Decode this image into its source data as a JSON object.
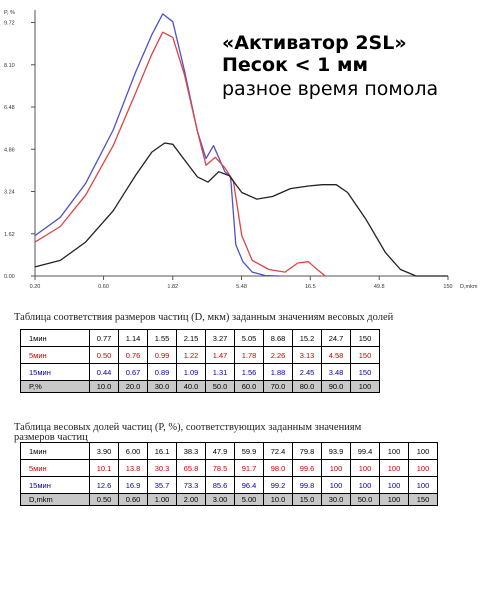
{
  "header": {
    "title": "«Активатор 2SL»",
    "line2": "Песок < 1 мм",
    "line3": "разное время помола"
  },
  "chart_data": {
    "type": "line",
    "ylabel": "P, %",
    "xlabel": "D,mkm",
    "y_ticks": [
      "0.00",
      "1.62",
      "3.24",
      "4.86",
      "6.48",
      "8.10",
      "9.72"
    ],
    "x_ticks": [
      "0.20",
      "0.60",
      "1.82",
      "5.48",
      "16.5",
      "49.8",
      "150"
    ],
    "x_scale": "log",
    "xlim": [
      0.2,
      150
    ],
    "ylim": [
      0,
      10.2
    ],
    "series": [
      {
        "name": "1мин",
        "color": "#5050cc",
        "points": [
          [
            0.2,
            1.55
          ],
          [
            0.3,
            2.25
          ],
          [
            0.45,
            3.55
          ],
          [
            0.7,
            5.6
          ],
          [
            1.0,
            7.8
          ],
          [
            1.3,
            9.25
          ],
          [
            1.55,
            10.05
          ],
          [
            1.82,
            9.75
          ],
          [
            2.2,
            7.85
          ],
          [
            2.7,
            5.55
          ],
          [
            3.1,
            4.5
          ],
          [
            3.5,
            5.0
          ],
          [
            4.2,
            4.0
          ],
          [
            4.6,
            3.8
          ],
          [
            5.0,
            1.2
          ],
          [
            5.6,
            0.55
          ],
          [
            6.5,
            0.15
          ],
          [
            8.0,
            0.02
          ],
          [
            10.0,
            0.0
          ]
        ]
      },
      {
        "name": "5мин",
        "color": "#dd4444",
        "points": [
          [
            0.2,
            1.3
          ],
          [
            0.3,
            1.9
          ],
          [
            0.45,
            3.1
          ],
          [
            0.7,
            5.0
          ],
          [
            1.0,
            7.0
          ],
          [
            1.3,
            8.5
          ],
          [
            1.55,
            9.35
          ],
          [
            1.82,
            9.15
          ],
          [
            2.2,
            7.7
          ],
          [
            2.7,
            5.55
          ],
          [
            3.1,
            4.25
          ],
          [
            3.6,
            4.55
          ],
          [
            4.2,
            4.15
          ],
          [
            4.8,
            3.65
          ],
          [
            5.5,
            1.55
          ],
          [
            6.5,
            0.6
          ],
          [
            8.5,
            0.25
          ],
          [
            11.0,
            0.15
          ],
          [
            13.5,
            0.5
          ],
          [
            16.0,
            0.55
          ],
          [
            18.0,
            0.3
          ],
          [
            21.0,
            0.0
          ]
        ]
      },
      {
        "name": "15мин",
        "color": "#222222",
        "points": [
          [
            0.2,
            0.35
          ],
          [
            0.3,
            0.6
          ],
          [
            0.45,
            1.3
          ],
          [
            0.7,
            2.5
          ],
          [
            1.0,
            3.85
          ],
          [
            1.3,
            4.75
          ],
          [
            1.6,
            5.1
          ],
          [
            1.82,
            5.05
          ],
          [
            2.2,
            4.45
          ],
          [
            2.7,
            3.8
          ],
          [
            3.2,
            3.6
          ],
          [
            3.8,
            4.0
          ],
          [
            4.5,
            3.85
          ],
          [
            5.5,
            3.2
          ],
          [
            7.0,
            2.95
          ],
          [
            9.0,
            3.05
          ],
          [
            12.0,
            3.35
          ],
          [
            16.0,
            3.45
          ],
          [
            20.0,
            3.5
          ],
          [
            25.0,
            3.5
          ],
          [
            30.0,
            3.2
          ],
          [
            40.0,
            2.2
          ],
          [
            55.0,
            0.9
          ],
          [
            70.0,
            0.25
          ],
          [
            90.0,
            0.0
          ],
          [
            150,
            0.0
          ]
        ]
      }
    ]
  },
  "table1": {
    "caption": "Таблица соответствия размеров частиц (D, мкм) заданным значениям весовых долей",
    "rows": [
      {
        "label": "1мин",
        "cls": "blk",
        "values": [
          "0.77",
          "1.14",
          "1.55",
          "2.15",
          "3.27",
          "5.05",
          "8.68",
          "15.2",
          "24.7",
          "150"
        ]
      },
      {
        "label": "5мин",
        "cls": "red",
        "values": [
          "0.50",
          "0.76",
          "0.99",
          "1.22",
          "1.47",
          "1.78",
          "2.26",
          "3.13",
          "4.58",
          "150"
        ]
      },
      {
        "label": "15мин",
        "cls": "blue",
        "values": [
          "0.44",
          "0.67",
          "0.89",
          "1.09",
          "1.31",
          "1.56",
          "1.88",
          "2.45",
          "3.48",
          "150"
        ]
      },
      {
        "label": "P,%",
        "cls": "blk",
        "values": [
          "10.0",
          "20.0",
          "30.0",
          "40.0",
          "50.0",
          "60.0",
          "70.0",
          "80.0",
          "90.0",
          "100"
        ]
      }
    ]
  },
  "table2": {
    "caption_line1": "Таблица весовых долей частиц (P, %), соответствующих заданным значениям",
    "caption_line2": "размеров частиц",
    "rows": [
      {
        "label": "1мин",
        "cls": "blk",
        "values": [
          "3.90",
          "6.00",
          "16.1",
          "38.3",
          "47.9",
          "59.9",
          "72.4",
          "79.8",
          "93.9",
          "99.4",
          "100",
          "100"
        ]
      },
      {
        "label": "5мин",
        "cls": "red",
        "values": [
          "10.1",
          "13.8",
          "30.3",
          "65.8",
          "78.5",
          "91.7",
          "98.0",
          "99.6",
          "100",
          "100",
          "100",
          "100"
        ]
      },
      {
        "label": "15мин",
        "cls": "blue",
        "values": [
          "12.6",
          "16.9",
          "35.7",
          "73.3",
          "85.6",
          "96.4",
          "99.2",
          "99.8",
          "100",
          "100",
          "100",
          "100"
        ]
      },
      {
        "label": "D,mkm",
        "cls": "blk",
        "values": [
          "0.50",
          "0.60",
          "1.00",
          "2.00",
          "3.00",
          "5.00",
          "10.0",
          "15.0",
          "30.0",
          "50.0",
          "100",
          "150"
        ]
      }
    ]
  }
}
